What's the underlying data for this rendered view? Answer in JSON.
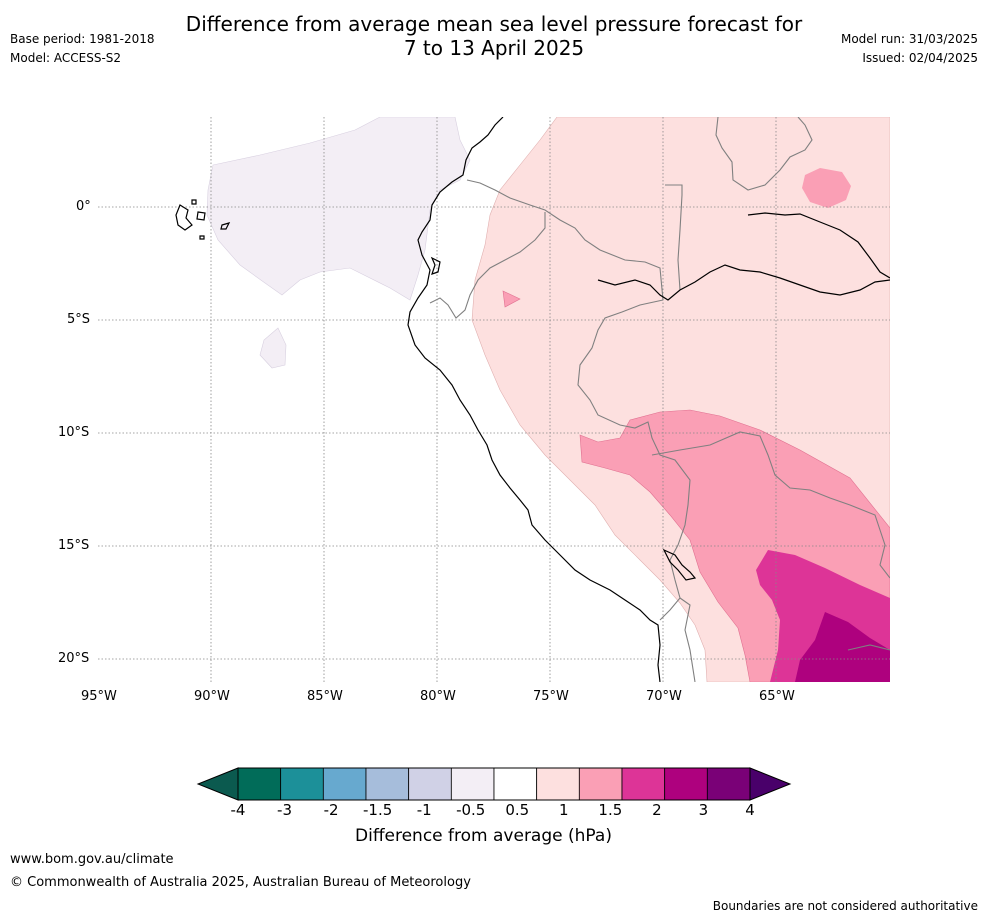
{
  "header": {
    "title_line1": "Difference from average mean sea level pressure forecast for",
    "title_line2": "7 to 13 April 2025",
    "base_period": "Base period: 1981-2018",
    "model": "Model: ACCESS-S2",
    "model_run": "Model run: 31/03/2025",
    "issued": "Issued: 02/04/2025"
  },
  "map": {
    "lat_labels": [
      "0°",
      "5°S",
      "10°S",
      "15°S",
      "20°S"
    ],
    "lon_labels": [
      "95°W",
      "90°W",
      "85°W",
      "80°W",
      "75°W",
      "70°W",
      "65°W"
    ],
    "colors": {
      "gridline": "#888888",
      "coastline": "#000000",
      "border": "#808080",
      "neg_0_5_to_neg_1": "#f3eef5",
      "pos_0_5_to_1": "#fde0df",
      "pos_1_to_1_5": "#fa9fb5",
      "pos_1_5_to_2": "#dd3497",
      "pos_2_to_3": "#ae017e"
    }
  },
  "colorbar": {
    "title": "Difference from average (hPa)",
    "labels": [
      "-4",
      "-3",
      "-2",
      "-1.5",
      "-1",
      "-0.5",
      "0.5",
      "1",
      "1.5",
      "2",
      "3",
      "4"
    ],
    "colors": [
      "#016c59",
      "#1c9099",
      "#67a9cf",
      "#a6bddb",
      "#d0d1e6",
      "#f3eef5",
      "#ffffff",
      "#fde0df",
      "#fa9fb5",
      "#dd3497",
      "#ae017e",
      "#7a0177"
    ],
    "below_color": "#0b5a4f",
    "above_color": "#49006a"
  },
  "footer": {
    "url": "www.bom.gov.au/climate",
    "copyright": "© Commonwealth of Australia 2025, Australian Bureau of Meteorology",
    "disclaimer": "Boundaries are not considered authoritative"
  }
}
